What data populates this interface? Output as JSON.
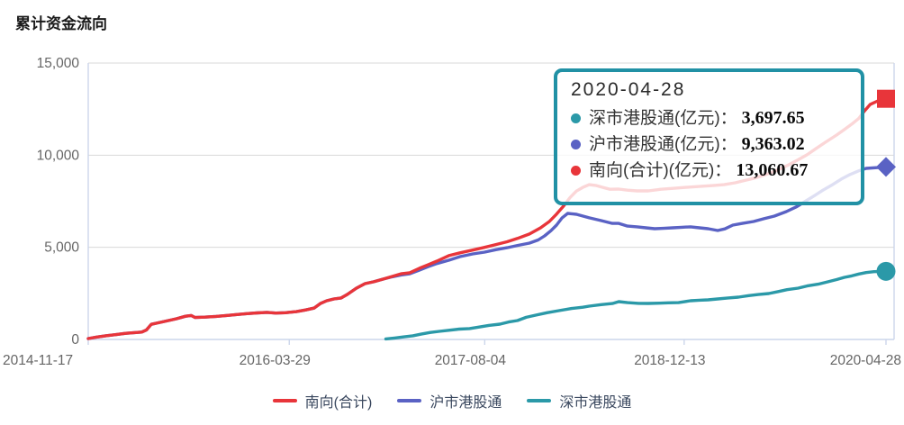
{
  "page": {
    "title": "累计资金流向"
  },
  "chart_data": {
    "type": "line",
    "title": "累计资金流向",
    "xlabel": "",
    "ylabel": "",
    "unit": "亿元",
    "grid": true,
    "colors": {
      "south_total": "#e8353a",
      "shanghai": "#5a62c4",
      "shenzhen": "#2b99a8",
      "grid_line": "#d8d8d8",
      "axis_border": "#ccd6eb",
      "axis_text": "#666666",
      "tooltip_border": "#2191a5"
    },
    "yaxis": {
      "min": 0,
      "max": 15000,
      "ticks": [
        {
          "value": 0,
          "label": "0"
        },
        {
          "value": 5000,
          "label": "5,000"
        },
        {
          "value": 10000,
          "label": "10,000"
        },
        {
          "value": 15000,
          "label": "15,000"
        }
      ]
    },
    "xaxis": {
      "ticks": [
        {
          "pos": 0,
          "label": "2014-11-17"
        },
        {
          "pos": 0.252,
          "label": "2016-03-29"
        },
        {
          "pos": 0.497,
          "label": "2017-08-04"
        },
        {
          "pos": 0.747,
          "label": "2018-12-13"
        },
        {
          "pos": 1,
          "label": "2020-04-28"
        }
      ]
    },
    "series": [
      {
        "name": "沪市港股通",
        "color": "#5a62c4",
        "marker": "diamond",
        "final_value": 9363.02,
        "points": [
          [
            0,
            50
          ],
          [
            0.011,
            130
          ],
          [
            0.022,
            200
          ],
          [
            0.034,
            260
          ],
          [
            0.047,
            330
          ],
          [
            0.058,
            370
          ],
          [
            0.067,
            400
          ],
          [
            0.073,
            520
          ],
          [
            0.079,
            820
          ],
          [
            0.087,
            900
          ],
          [
            0.098,
            1000
          ],
          [
            0.11,
            1120
          ],
          [
            0.122,
            1260
          ],
          [
            0.129,
            1300
          ],
          [
            0.134,
            1190
          ],
          [
            0.146,
            1210
          ],
          [
            0.16,
            1250
          ],
          [
            0.173,
            1300
          ],
          [
            0.185,
            1350
          ],
          [
            0.199,
            1400
          ],
          [
            0.212,
            1440
          ],
          [
            0.224,
            1470
          ],
          [
            0.235,
            1430
          ],
          [
            0.247,
            1450
          ],
          [
            0.261,
            1510
          ],
          [
            0.272,
            1600
          ],
          [
            0.283,
            1700
          ],
          [
            0.291,
            1950
          ],
          [
            0.299,
            2100
          ],
          [
            0.308,
            2200
          ],
          [
            0.317,
            2250
          ],
          [
            0.325,
            2450
          ],
          [
            0.336,
            2780
          ],
          [
            0.347,
            3030
          ],
          [
            0.358,
            3130
          ],
          [
            0.37,
            3280
          ],
          [
            0.381,
            3400
          ],
          [
            0.392,
            3500
          ],
          [
            0.403,
            3560
          ],
          [
            0.415,
            3760
          ],
          [
            0.426,
            3950
          ],
          [
            0.437,
            4120
          ],
          [
            0.452,
            4300
          ],
          [
            0.466,
            4495
          ],
          [
            0.482,
            4640
          ],
          [
            0.497,
            4740
          ],
          [
            0.511,
            4870
          ],
          [
            0.525,
            4980
          ],
          [
            0.538,
            5100
          ],
          [
            0.553,
            5230
          ],
          [
            0.564,
            5400
          ],
          [
            0.572,
            5620
          ],
          [
            0.58,
            5900
          ],
          [
            0.587,
            6205
          ],
          [
            0.594,
            6600
          ],
          [
            0.601,
            6840
          ],
          [
            0.612,
            6790
          ],
          [
            0.628,
            6600
          ],
          [
            0.643,
            6450
          ],
          [
            0.657,
            6300
          ],
          [
            0.665,
            6300
          ],
          [
            0.676,
            6150
          ],
          [
            0.688,
            6110
          ],
          [
            0.699,
            6060
          ],
          [
            0.71,
            6010
          ],
          [
            0.721,
            6030
          ],
          [
            0.733,
            6060
          ],
          [
            0.744,
            6090
          ],
          [
            0.755,
            6110
          ],
          [
            0.766,
            6060
          ],
          [
            0.777,
            6010
          ],
          [
            0.789,
            5910
          ],
          [
            0.798,
            6000
          ],
          [
            0.808,
            6205
          ],
          [
            0.82,
            6300
          ],
          [
            0.834,
            6400
          ],
          [
            0.847,
            6550
          ],
          [
            0.86,
            6695
          ],
          [
            0.875,
            6940
          ],
          [
            0.888,
            7200
          ],
          [
            0.899,
            7500
          ],
          [
            0.91,
            7800
          ],
          [
            0.921,
            8100
          ],
          [
            0.933,
            8400
          ],
          [
            0.944,
            8700
          ],
          [
            0.955,
            8950
          ],
          [
            0.966,
            9150
          ],
          [
            0.975,
            9285
          ],
          [
            1,
            9363.02
          ]
        ]
      },
      {
        "name": "深市港股通",
        "color": "#2b99a8",
        "marker": "circle",
        "final_value": 3697.65,
        "points": [
          [
            0.373,
            30
          ],
          [
            0.384,
            80
          ],
          [
            0.396,
            140
          ],
          [
            0.407,
            200
          ],
          [
            0.418,
            300
          ],
          [
            0.429,
            380
          ],
          [
            0.44,
            440
          ],
          [
            0.452,
            500
          ],
          [
            0.465,
            560
          ],
          [
            0.478,
            590
          ],
          [
            0.491,
            680
          ],
          [
            0.502,
            760
          ],
          [
            0.516,
            830
          ],
          [
            0.527,
            950
          ],
          [
            0.538,
            1025
          ],
          [
            0.549,
            1200
          ],
          [
            0.561,
            1320
          ],
          [
            0.575,
            1450
          ],
          [
            0.59,
            1565
          ],
          [
            0.606,
            1680
          ],
          [
            0.62,
            1750
          ],
          [
            0.628,
            1810
          ],
          [
            0.643,
            1890
          ],
          [
            0.657,
            1950
          ],
          [
            0.665,
            2050
          ],
          [
            0.676,
            2000
          ],
          [
            0.69,
            1960
          ],
          [
            0.702,
            1955
          ],
          [
            0.716,
            1970
          ],
          [
            0.727,
            1990
          ],
          [
            0.74,
            2000
          ],
          [
            0.755,
            2100
          ],
          [
            0.766,
            2130
          ],
          [
            0.777,
            2150
          ],
          [
            0.789,
            2200
          ],
          [
            0.802,
            2250
          ],
          [
            0.815,
            2295
          ],
          [
            0.828,
            2380
          ],
          [
            0.84,
            2440
          ],
          [
            0.853,
            2490
          ],
          [
            0.865,
            2600
          ],
          [
            0.876,
            2700
          ],
          [
            0.89,
            2785
          ],
          [
            0.901,
            2900
          ],
          [
            0.915,
            3000
          ],
          [
            0.927,
            3125
          ],
          [
            0.938,
            3250
          ],
          [
            0.948,
            3370
          ],
          [
            0.957,
            3450
          ],
          [
            0.966,
            3550
          ],
          [
            0.975,
            3630
          ],
          [
            0.985,
            3680
          ],
          [
            1,
            3697.65
          ]
        ]
      },
      {
        "name": "南向(合计)",
        "color": "#e8353a",
        "marker": "square",
        "final_value": 13060.67,
        "points": [
          [
            0,
            50
          ],
          [
            0.011,
            130
          ],
          [
            0.022,
            200
          ],
          [
            0.034,
            260
          ],
          [
            0.047,
            330
          ],
          [
            0.058,
            370
          ],
          [
            0.067,
            400
          ],
          [
            0.073,
            520
          ],
          [
            0.079,
            820
          ],
          [
            0.087,
            900
          ],
          [
            0.098,
            1000
          ],
          [
            0.11,
            1120
          ],
          [
            0.122,
            1260
          ],
          [
            0.129,
            1300
          ],
          [
            0.134,
            1190
          ],
          [
            0.146,
            1210
          ],
          [
            0.16,
            1250
          ],
          [
            0.173,
            1300
          ],
          [
            0.185,
            1350
          ],
          [
            0.199,
            1400
          ],
          [
            0.212,
            1440
          ],
          [
            0.224,
            1470
          ],
          [
            0.235,
            1430
          ],
          [
            0.247,
            1450
          ],
          [
            0.261,
            1510
          ],
          [
            0.272,
            1600
          ],
          [
            0.283,
            1700
          ],
          [
            0.291,
            1950
          ],
          [
            0.299,
            2100
          ],
          [
            0.308,
            2200
          ],
          [
            0.317,
            2250
          ],
          [
            0.325,
            2450
          ],
          [
            0.336,
            2780
          ],
          [
            0.347,
            3030
          ],
          [
            0.358,
            3130
          ],
          [
            0.37,
            3280
          ],
          [
            0.381,
            3420
          ],
          [
            0.392,
            3560
          ],
          [
            0.403,
            3620
          ],
          [
            0.415,
            3860
          ],
          [
            0.426,
            4050
          ],
          [
            0.437,
            4250
          ],
          [
            0.452,
            4550
          ],
          [
            0.466,
            4700
          ],
          [
            0.482,
            4850
          ],
          [
            0.497,
            5000
          ],
          [
            0.511,
            5150
          ],
          [
            0.525,
            5300
          ],
          [
            0.538,
            5480
          ],
          [
            0.553,
            5720
          ],
          [
            0.567,
            6060
          ],
          [
            0.578,
            6400
          ],
          [
            0.587,
            6800
          ],
          [
            0.596,
            7250
          ],
          [
            0.604,
            7700
          ],
          [
            0.612,
            8050
          ],
          [
            0.62,
            8250
          ],
          [
            0.628,
            8400
          ],
          [
            0.637,
            8350
          ],
          [
            0.645,
            8250
          ],
          [
            0.654,
            8150
          ],
          [
            0.665,
            8160
          ],
          [
            0.676,
            8100
          ],
          [
            0.688,
            8060
          ],
          [
            0.702,
            8060
          ],
          [
            0.718,
            8150
          ],
          [
            0.733,
            8200
          ],
          [
            0.749,
            8250
          ],
          [
            0.766,
            8300
          ],
          [
            0.783,
            8350
          ],
          [
            0.797,
            8400
          ],
          [
            0.811,
            8500
          ],
          [
            0.822,
            8620
          ],
          [
            0.834,
            8740
          ],
          [
            0.845,
            8890
          ],
          [
            0.856,
            9050
          ],
          [
            0.867,
            9250
          ],
          [
            0.879,
            9500
          ],
          [
            0.89,
            9750
          ],
          [
            0.901,
            10020
          ],
          [
            0.912,
            10350
          ],
          [
            0.924,
            10700
          ],
          [
            0.938,
            11090
          ],
          [
            0.948,
            11400
          ],
          [
            0.957,
            11680
          ],
          [
            0.966,
            12000
          ],
          [
            0.973,
            12400
          ],
          [
            0.98,
            12750
          ],
          [
            0.99,
            12950
          ],
          [
            1,
            13060.67
          ]
        ]
      }
    ]
  },
  "tooltip": {
    "date": "2020-04-28",
    "rows": [
      {
        "label": "深市港股通(亿元)：",
        "value": "3,697.65",
        "color": "#2b99a8"
      },
      {
        "label": "沪市港股通(亿元)：",
        "value": "9,363.02",
        "color": "#5a62c4"
      },
      {
        "label": "南向(合计)(亿元)：",
        "value": "13,060.67",
        "color": "#e8353a"
      }
    ]
  },
  "legend": {
    "items": [
      {
        "label": "南向(合计)",
        "color": "#e8353a"
      },
      {
        "label": "沪市港股通",
        "color": "#5a62c4"
      },
      {
        "label": "深市港股通",
        "color": "#2b99a8"
      }
    ]
  }
}
